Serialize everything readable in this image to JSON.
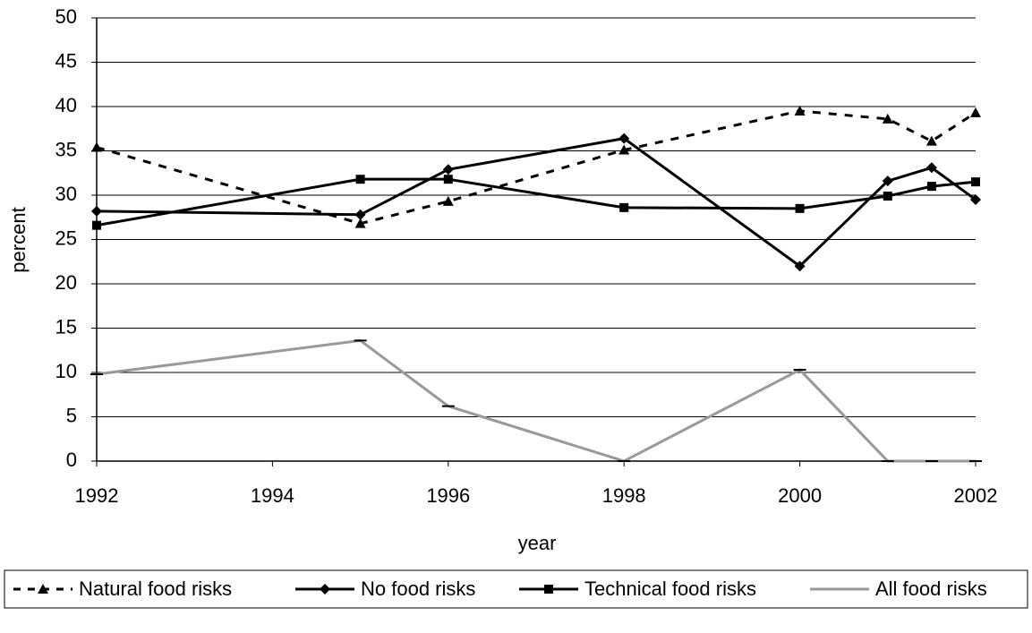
{
  "chart_data": {
    "type": "line",
    "x_label": "year",
    "y_label": "percent",
    "xlim": [
      1992,
      2002
    ],
    "xticks": [
      1992,
      1994,
      1996,
      1998,
      2000,
      2002
    ],
    "ylim": [
      0,
      50
    ],
    "yticks": [
      0,
      5,
      10,
      15,
      20,
      25,
      30,
      35,
      40,
      45,
      50
    ],
    "grid": true,
    "legend": "bottom",
    "x": [
      1992,
      1995,
      1996,
      1998,
      2000,
      2001,
      2001.5,
      2002
    ],
    "series": [
      {
        "name": "Natural food risks",
        "color": "#000000",
        "marker": "triangle",
        "dashed": true,
        "values": [
          35.4,
          26.8,
          29.3,
          35.1,
          39.5,
          38.6,
          36.1,
          39.3
        ]
      },
      {
        "name": "No food risks",
        "color": "#000000",
        "marker": "diamond",
        "dashed": false,
        "values": [
          28.2,
          27.8,
          32.9,
          36.4,
          22.0,
          31.6,
          33.1,
          29.5
        ]
      },
      {
        "name": "Technical food risks",
        "color": "#000000",
        "marker": "square",
        "dashed": false,
        "values": [
          26.6,
          31.8,
          31.8,
          28.6,
          28.5,
          29.9,
          31.0,
          31.5
        ]
      },
      {
        "name": "All food risks",
        "color": "#999999",
        "marker": "dash",
        "dashed": false,
        "values": [
          9.8,
          13.6,
          6.2,
          0,
          10.3,
          0,
          0,
          0
        ]
      }
    ]
  }
}
